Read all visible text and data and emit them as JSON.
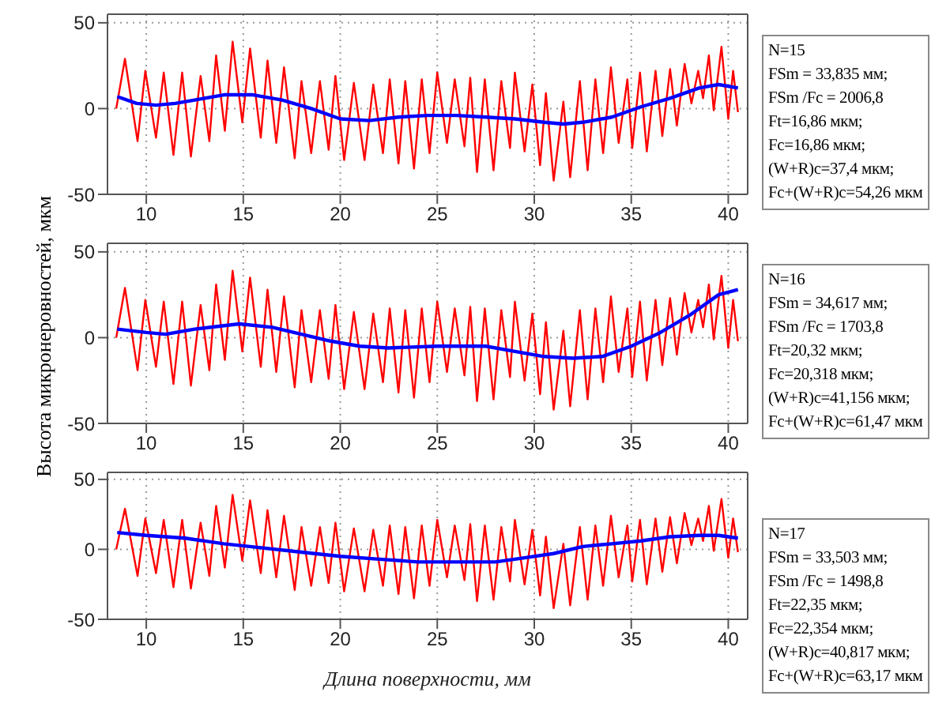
{
  "chart_data": [
    {
      "type": "line",
      "xlim": [
        8,
        41
      ],
      "ylim": [
        -50,
        55
      ],
      "xticks": [
        10,
        15,
        20,
        25,
        30,
        35,
        40
      ],
      "yticks": [
        -50,
        0,
        50
      ],
      "grid": true,
      "line_style": "solid",
      "marker": "none",
      "annotations": [
        "N=15",
        "FSm = 33,835 мм;",
        "FSm /Fc = 2006,8",
        "Ft=16,86 мкм;",
        "Fc=16,86 мкм;",
        "(W+R)c=37,4 мкм;",
        "Fc+(W+R)c=54,26 мкм"
      ],
      "series": [
        {
          "color": "#ff0000",
          "x": [
            8.45,
            8.9,
            9.55,
            9.95,
            10.5,
            10.9,
            11.4,
            11.85,
            12.3,
            12.8,
            13.25,
            13.6,
            14.05,
            14.45,
            14.95,
            15.35,
            15.9,
            16.25,
            16.7,
            17.1,
            17.65,
            18.0,
            18.5,
            18.95,
            19.4,
            19.75,
            20.2,
            20.7,
            21.25,
            21.7,
            22.2,
            22.55,
            23.0,
            23.35,
            23.8,
            24.2,
            24.6,
            25.0,
            25.5,
            25.9,
            26.4,
            26.7,
            27.05,
            27.45,
            27.9,
            28.3,
            28.75,
            29.0,
            29.5,
            29.9,
            30.3,
            30.6,
            31.0,
            31.5,
            31.85,
            32.35,
            32.75,
            33.15,
            33.55,
            33.95,
            34.35,
            34.8,
            35.05,
            35.45,
            35.8,
            36.25,
            36.6,
            37.0,
            37.35,
            37.75,
            38.1,
            38.45,
            38.7,
            39.0,
            39.25,
            39.65,
            40.0,
            40.25,
            40.5
          ],
          "values": [
            0,
            29,
            -19,
            22,
            -17,
            21,
            -27,
            21,
            -28,
            19,
            -19,
            31,
            -13,
            39,
            -8,
            35,
            -17,
            28,
            -20,
            24,
            -29,
            16,
            -26,
            16,
            -24,
            19,
            -30,
            15,
            -30,
            14,
            -26,
            17,
            -32,
            16,
            -35,
            17,
            -26,
            21,
            -20,
            17,
            -22,
            18,
            -37,
            17,
            -36,
            16,
            -23,
            21,
            -25,
            14,
            -33,
            9,
            -42,
            4,
            -40,
            16,
            -36,
            17,
            -26,
            24,
            -20,
            17,
            -23,
            21,
            -25,
            22,
            -16,
            23,
            -10,
            26,
            3,
            22,
            6,
            31,
            -1,
            36,
            -6,
            22,
            -2
          ]
        },
        {
          "color": "#0000ff",
          "x": [
            8.5,
            9.5,
            10.5,
            11.5,
            12.5,
            14,
            15.5,
            17,
            18.5,
            20,
            21.5,
            23,
            24.5,
            26,
            27.5,
            29,
            30.5,
            31.5,
            32.5,
            34,
            35.5,
            37,
            38.5,
            39.5,
            40.5
          ],
          "values": [
            7,
            3,
            2,
            3,
            5,
            8,
            8,
            5,
            0,
            -6,
            -7,
            -5,
            -4,
            -4,
            -5,
            -6,
            -8,
            -9,
            -8,
            -5,
            1,
            6,
            12,
            14,
            12
          ]
        }
      ]
    },
    {
      "type": "line",
      "xlim": [
        8,
        41
      ],
      "ylim": [
        -50,
        55
      ],
      "xticks": [
        10,
        15,
        20,
        25,
        30,
        35,
        40
      ],
      "yticks": [
        -50,
        0,
        50
      ],
      "grid": true,
      "line_style": "solid",
      "marker": "none",
      "ylabel": "Высота микронеровностей, мкм",
      "annotations": [
        "N=16",
        "FSm = 34,617 мм;",
        "FSm /Fc = 1703,8",
        "Ft=20,32 мкм;",
        "Fc=20,318 мкм;",
        "(W+R)c=41,156 мкм;",
        "Fc+(W+R)c=61,47 мкм"
      ],
      "series": [
        {
          "color": "#ff0000",
          "x": [
            8.45,
            8.9,
            9.55,
            9.95,
            10.5,
            10.9,
            11.4,
            11.85,
            12.3,
            12.8,
            13.25,
            13.6,
            14.05,
            14.45,
            14.95,
            15.35,
            15.9,
            16.25,
            16.7,
            17.1,
            17.65,
            18.0,
            18.5,
            18.95,
            19.4,
            19.75,
            20.2,
            20.7,
            21.25,
            21.7,
            22.2,
            22.55,
            23.0,
            23.35,
            23.8,
            24.2,
            24.6,
            25.0,
            25.5,
            25.9,
            26.4,
            26.7,
            27.05,
            27.45,
            27.9,
            28.3,
            28.75,
            29.0,
            29.5,
            29.9,
            30.3,
            30.6,
            31.0,
            31.5,
            31.85,
            32.35,
            32.75,
            33.15,
            33.55,
            33.95,
            34.35,
            34.8,
            35.05,
            35.45,
            35.8,
            36.25,
            36.6,
            37.0,
            37.35,
            37.75,
            38.1,
            38.45,
            38.7,
            39.0,
            39.25,
            39.65,
            40.0,
            40.25,
            40.5
          ],
          "values": [
            0,
            29,
            -19,
            22,
            -17,
            21,
            -27,
            21,
            -28,
            19,
            -19,
            31,
            -13,
            39,
            -8,
            35,
            -17,
            28,
            -20,
            24,
            -29,
            16,
            -26,
            16,
            -24,
            19,
            -30,
            15,
            -30,
            14,
            -26,
            17,
            -32,
            16,
            -35,
            17,
            -26,
            21,
            -20,
            17,
            -22,
            18,
            -37,
            17,
            -36,
            16,
            -23,
            21,
            -25,
            14,
            -33,
            9,
            -42,
            4,
            -40,
            16,
            -36,
            17,
            -26,
            24,
            -20,
            17,
            -23,
            21,
            -25,
            22,
            -16,
            23,
            -10,
            26,
            3,
            22,
            6,
            31,
            -1,
            36,
            -6,
            22,
            -2
          ]
        },
        {
          "color": "#0000ff",
          "x": [
            8.5,
            10,
            11,
            12.5,
            14.8,
            16.5,
            18,
            19.5,
            21,
            22.5,
            25,
            27.5,
            29,
            30.5,
            32,
            33.5,
            35,
            36.5,
            38,
            39.5,
            40.5
          ],
          "values": [
            5,
            3,
            2,
            5,
            8,
            6,
            2,
            -2,
            -5,
            -6,
            -5,
            -5,
            -8,
            -11,
            -12,
            -11,
            -5,
            3,
            13,
            25,
            28
          ]
        }
      ]
    },
    {
      "type": "line",
      "xlim": [
        8,
        41
      ],
      "ylim": [
        -50,
        55
      ],
      "xticks": [
        10,
        15,
        20,
        25,
        30,
        35,
        40
      ],
      "yticks": [
        -50,
        0,
        50
      ],
      "grid": true,
      "line_style": "solid",
      "marker": "none",
      "xlabel": "Длина поверхности, мм",
      "annotations": [
        "N=17",
        "FSm = 33,503 мм;",
        "FSm /Fc = 1498,8",
        "Ft=22,35 мкм;",
        "Fc=22,354 мкм;",
        "(W+R)c=40,817 мкм;",
        "Fc+(W+R)c=63,17 мкм"
      ],
      "series": [
        {
          "color": "#ff0000",
          "x": [
            8.45,
            8.9,
            9.55,
            9.95,
            10.5,
            10.9,
            11.4,
            11.85,
            12.3,
            12.8,
            13.25,
            13.6,
            14.05,
            14.45,
            14.95,
            15.35,
            15.9,
            16.25,
            16.7,
            17.1,
            17.65,
            18.0,
            18.5,
            18.95,
            19.4,
            19.75,
            20.2,
            20.7,
            21.25,
            21.7,
            22.2,
            22.55,
            23.0,
            23.35,
            23.8,
            24.2,
            24.6,
            25.0,
            25.5,
            25.9,
            26.4,
            26.7,
            27.05,
            27.45,
            27.9,
            28.3,
            28.75,
            29.0,
            29.5,
            29.9,
            30.3,
            30.6,
            31.0,
            31.5,
            31.85,
            32.35,
            32.75,
            33.15,
            33.55,
            33.95,
            34.35,
            34.8,
            35.05,
            35.45,
            35.8,
            36.25,
            36.6,
            37.0,
            37.35,
            37.75,
            38.1,
            38.45,
            38.7,
            39.0,
            39.25,
            39.65,
            40.0,
            40.25,
            40.5
          ],
          "values": [
            0,
            29,
            -19,
            22,
            -17,
            21,
            -27,
            21,
            -28,
            19,
            -19,
            31,
            -13,
            39,
            -8,
            35,
            -17,
            28,
            -20,
            24,
            -29,
            16,
            -26,
            16,
            -24,
            19,
            -30,
            15,
            -30,
            14,
            -26,
            17,
            -32,
            16,
            -35,
            17,
            -26,
            21,
            -20,
            17,
            -22,
            18,
            -37,
            17,
            -36,
            16,
            -23,
            21,
            -25,
            14,
            -33,
            9,
            -42,
            4,
            -40,
            16,
            -36,
            17,
            -26,
            24,
            -20,
            17,
            -23,
            21,
            -25,
            22,
            -16,
            23,
            -10,
            26,
            3,
            22,
            6,
            31,
            -1,
            36,
            -6,
            22,
            -2
          ]
        },
        {
          "color": "#0000ff",
          "x": [
            8.5,
            10,
            12,
            14,
            16,
            18,
            20,
            22,
            24,
            26,
            28,
            29.5,
            31,
            32.5,
            34,
            35.5,
            37,
            38.5,
            39.5,
            40.5
          ],
          "values": [
            12,
            10,
            8,
            4,
            1,
            -2,
            -5,
            -7,
            -9,
            -9,
            -9,
            -6,
            -3,
            2,
            4,
            6,
            9,
            10,
            10,
            8
          ]
        }
      ]
    }
  ]
}
